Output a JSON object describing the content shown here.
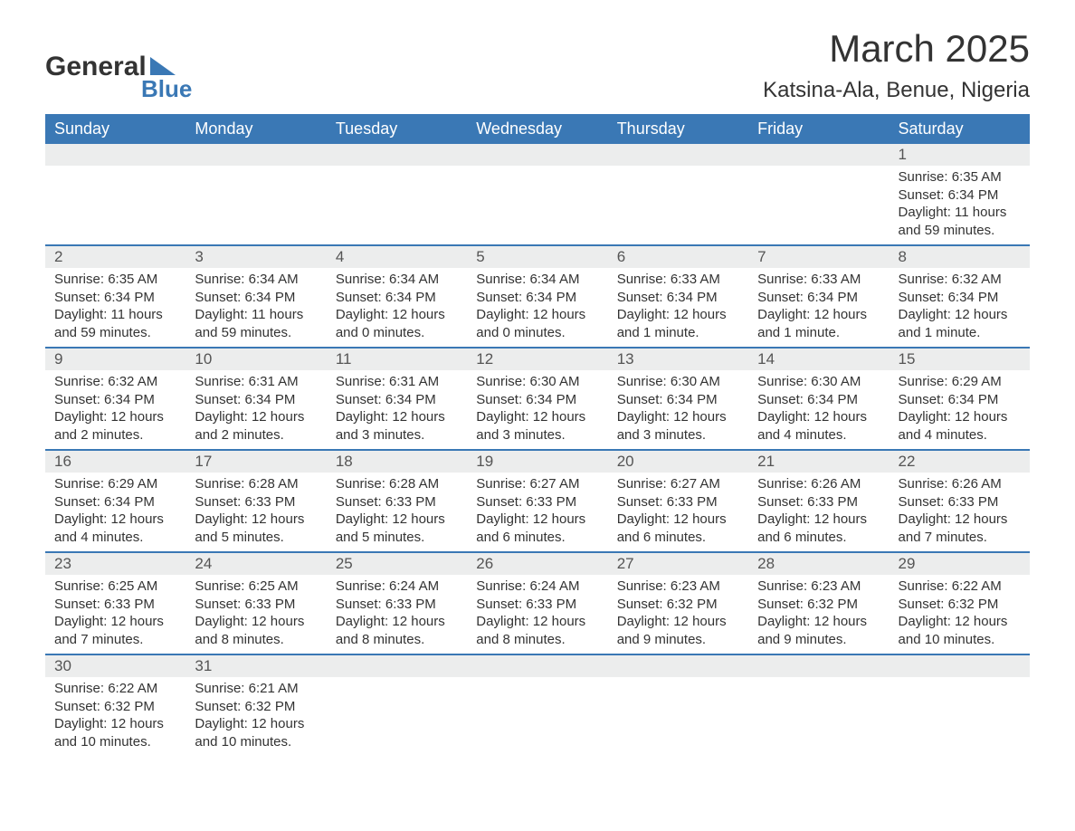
{
  "logo": {
    "text1": "General",
    "text2": "Blue"
  },
  "title": "March 2025",
  "location": "Katsina-Ala, Benue, Nigeria",
  "header_color": "#3a78b5",
  "grid_bg": "#eceded",
  "text_color": "#333333",
  "days_of_week": [
    "Sunday",
    "Monday",
    "Tuesday",
    "Wednesday",
    "Thursday",
    "Friday",
    "Saturday"
  ],
  "weeks": [
    [
      null,
      null,
      null,
      null,
      null,
      null,
      {
        "n": "1",
        "sr": "Sunrise: 6:35 AM",
        "ss": "Sunset: 6:34 PM",
        "dl1": "Daylight: 11 hours",
        "dl2": "and 59 minutes."
      }
    ],
    [
      {
        "n": "2",
        "sr": "Sunrise: 6:35 AM",
        "ss": "Sunset: 6:34 PM",
        "dl1": "Daylight: 11 hours",
        "dl2": "and 59 minutes."
      },
      {
        "n": "3",
        "sr": "Sunrise: 6:34 AM",
        "ss": "Sunset: 6:34 PM",
        "dl1": "Daylight: 11 hours",
        "dl2": "and 59 minutes."
      },
      {
        "n": "4",
        "sr": "Sunrise: 6:34 AM",
        "ss": "Sunset: 6:34 PM",
        "dl1": "Daylight: 12 hours",
        "dl2": "and 0 minutes."
      },
      {
        "n": "5",
        "sr": "Sunrise: 6:34 AM",
        "ss": "Sunset: 6:34 PM",
        "dl1": "Daylight: 12 hours",
        "dl2": "and 0 minutes."
      },
      {
        "n": "6",
        "sr": "Sunrise: 6:33 AM",
        "ss": "Sunset: 6:34 PM",
        "dl1": "Daylight: 12 hours",
        "dl2": "and 1 minute."
      },
      {
        "n": "7",
        "sr": "Sunrise: 6:33 AM",
        "ss": "Sunset: 6:34 PM",
        "dl1": "Daylight: 12 hours",
        "dl2": "and 1 minute."
      },
      {
        "n": "8",
        "sr": "Sunrise: 6:32 AM",
        "ss": "Sunset: 6:34 PM",
        "dl1": "Daylight: 12 hours",
        "dl2": "and 1 minute."
      }
    ],
    [
      {
        "n": "9",
        "sr": "Sunrise: 6:32 AM",
        "ss": "Sunset: 6:34 PM",
        "dl1": "Daylight: 12 hours",
        "dl2": "and 2 minutes."
      },
      {
        "n": "10",
        "sr": "Sunrise: 6:31 AM",
        "ss": "Sunset: 6:34 PM",
        "dl1": "Daylight: 12 hours",
        "dl2": "and 2 minutes."
      },
      {
        "n": "11",
        "sr": "Sunrise: 6:31 AM",
        "ss": "Sunset: 6:34 PM",
        "dl1": "Daylight: 12 hours",
        "dl2": "and 3 minutes."
      },
      {
        "n": "12",
        "sr": "Sunrise: 6:30 AM",
        "ss": "Sunset: 6:34 PM",
        "dl1": "Daylight: 12 hours",
        "dl2": "and 3 minutes."
      },
      {
        "n": "13",
        "sr": "Sunrise: 6:30 AM",
        "ss": "Sunset: 6:34 PM",
        "dl1": "Daylight: 12 hours",
        "dl2": "and 3 minutes."
      },
      {
        "n": "14",
        "sr": "Sunrise: 6:30 AM",
        "ss": "Sunset: 6:34 PM",
        "dl1": "Daylight: 12 hours",
        "dl2": "and 4 minutes."
      },
      {
        "n": "15",
        "sr": "Sunrise: 6:29 AM",
        "ss": "Sunset: 6:34 PM",
        "dl1": "Daylight: 12 hours",
        "dl2": "and 4 minutes."
      }
    ],
    [
      {
        "n": "16",
        "sr": "Sunrise: 6:29 AM",
        "ss": "Sunset: 6:34 PM",
        "dl1": "Daylight: 12 hours",
        "dl2": "and 4 minutes."
      },
      {
        "n": "17",
        "sr": "Sunrise: 6:28 AM",
        "ss": "Sunset: 6:33 PM",
        "dl1": "Daylight: 12 hours",
        "dl2": "and 5 minutes."
      },
      {
        "n": "18",
        "sr": "Sunrise: 6:28 AM",
        "ss": "Sunset: 6:33 PM",
        "dl1": "Daylight: 12 hours",
        "dl2": "and 5 minutes."
      },
      {
        "n": "19",
        "sr": "Sunrise: 6:27 AM",
        "ss": "Sunset: 6:33 PM",
        "dl1": "Daylight: 12 hours",
        "dl2": "and 6 minutes."
      },
      {
        "n": "20",
        "sr": "Sunrise: 6:27 AM",
        "ss": "Sunset: 6:33 PM",
        "dl1": "Daylight: 12 hours",
        "dl2": "and 6 minutes."
      },
      {
        "n": "21",
        "sr": "Sunrise: 6:26 AM",
        "ss": "Sunset: 6:33 PM",
        "dl1": "Daylight: 12 hours",
        "dl2": "and 6 minutes."
      },
      {
        "n": "22",
        "sr": "Sunrise: 6:26 AM",
        "ss": "Sunset: 6:33 PM",
        "dl1": "Daylight: 12 hours",
        "dl2": "and 7 minutes."
      }
    ],
    [
      {
        "n": "23",
        "sr": "Sunrise: 6:25 AM",
        "ss": "Sunset: 6:33 PM",
        "dl1": "Daylight: 12 hours",
        "dl2": "and 7 minutes."
      },
      {
        "n": "24",
        "sr": "Sunrise: 6:25 AM",
        "ss": "Sunset: 6:33 PM",
        "dl1": "Daylight: 12 hours",
        "dl2": "and 8 minutes."
      },
      {
        "n": "25",
        "sr": "Sunrise: 6:24 AM",
        "ss": "Sunset: 6:33 PM",
        "dl1": "Daylight: 12 hours",
        "dl2": "and 8 minutes."
      },
      {
        "n": "26",
        "sr": "Sunrise: 6:24 AM",
        "ss": "Sunset: 6:33 PM",
        "dl1": "Daylight: 12 hours",
        "dl2": "and 8 minutes."
      },
      {
        "n": "27",
        "sr": "Sunrise: 6:23 AM",
        "ss": "Sunset: 6:32 PM",
        "dl1": "Daylight: 12 hours",
        "dl2": "and 9 minutes."
      },
      {
        "n": "28",
        "sr": "Sunrise: 6:23 AM",
        "ss": "Sunset: 6:32 PM",
        "dl1": "Daylight: 12 hours",
        "dl2": "and 9 minutes."
      },
      {
        "n": "29",
        "sr": "Sunrise: 6:22 AM",
        "ss": "Sunset: 6:32 PM",
        "dl1": "Daylight: 12 hours",
        "dl2": "and 10 minutes."
      }
    ],
    [
      {
        "n": "30",
        "sr": "Sunrise: 6:22 AM",
        "ss": "Sunset: 6:32 PM",
        "dl1": "Daylight: 12 hours",
        "dl2": "and 10 minutes."
      },
      {
        "n": "31",
        "sr": "Sunrise: 6:21 AM",
        "ss": "Sunset: 6:32 PM",
        "dl1": "Daylight: 12 hours",
        "dl2": "and 10 minutes."
      },
      null,
      null,
      null,
      null,
      null
    ]
  ]
}
